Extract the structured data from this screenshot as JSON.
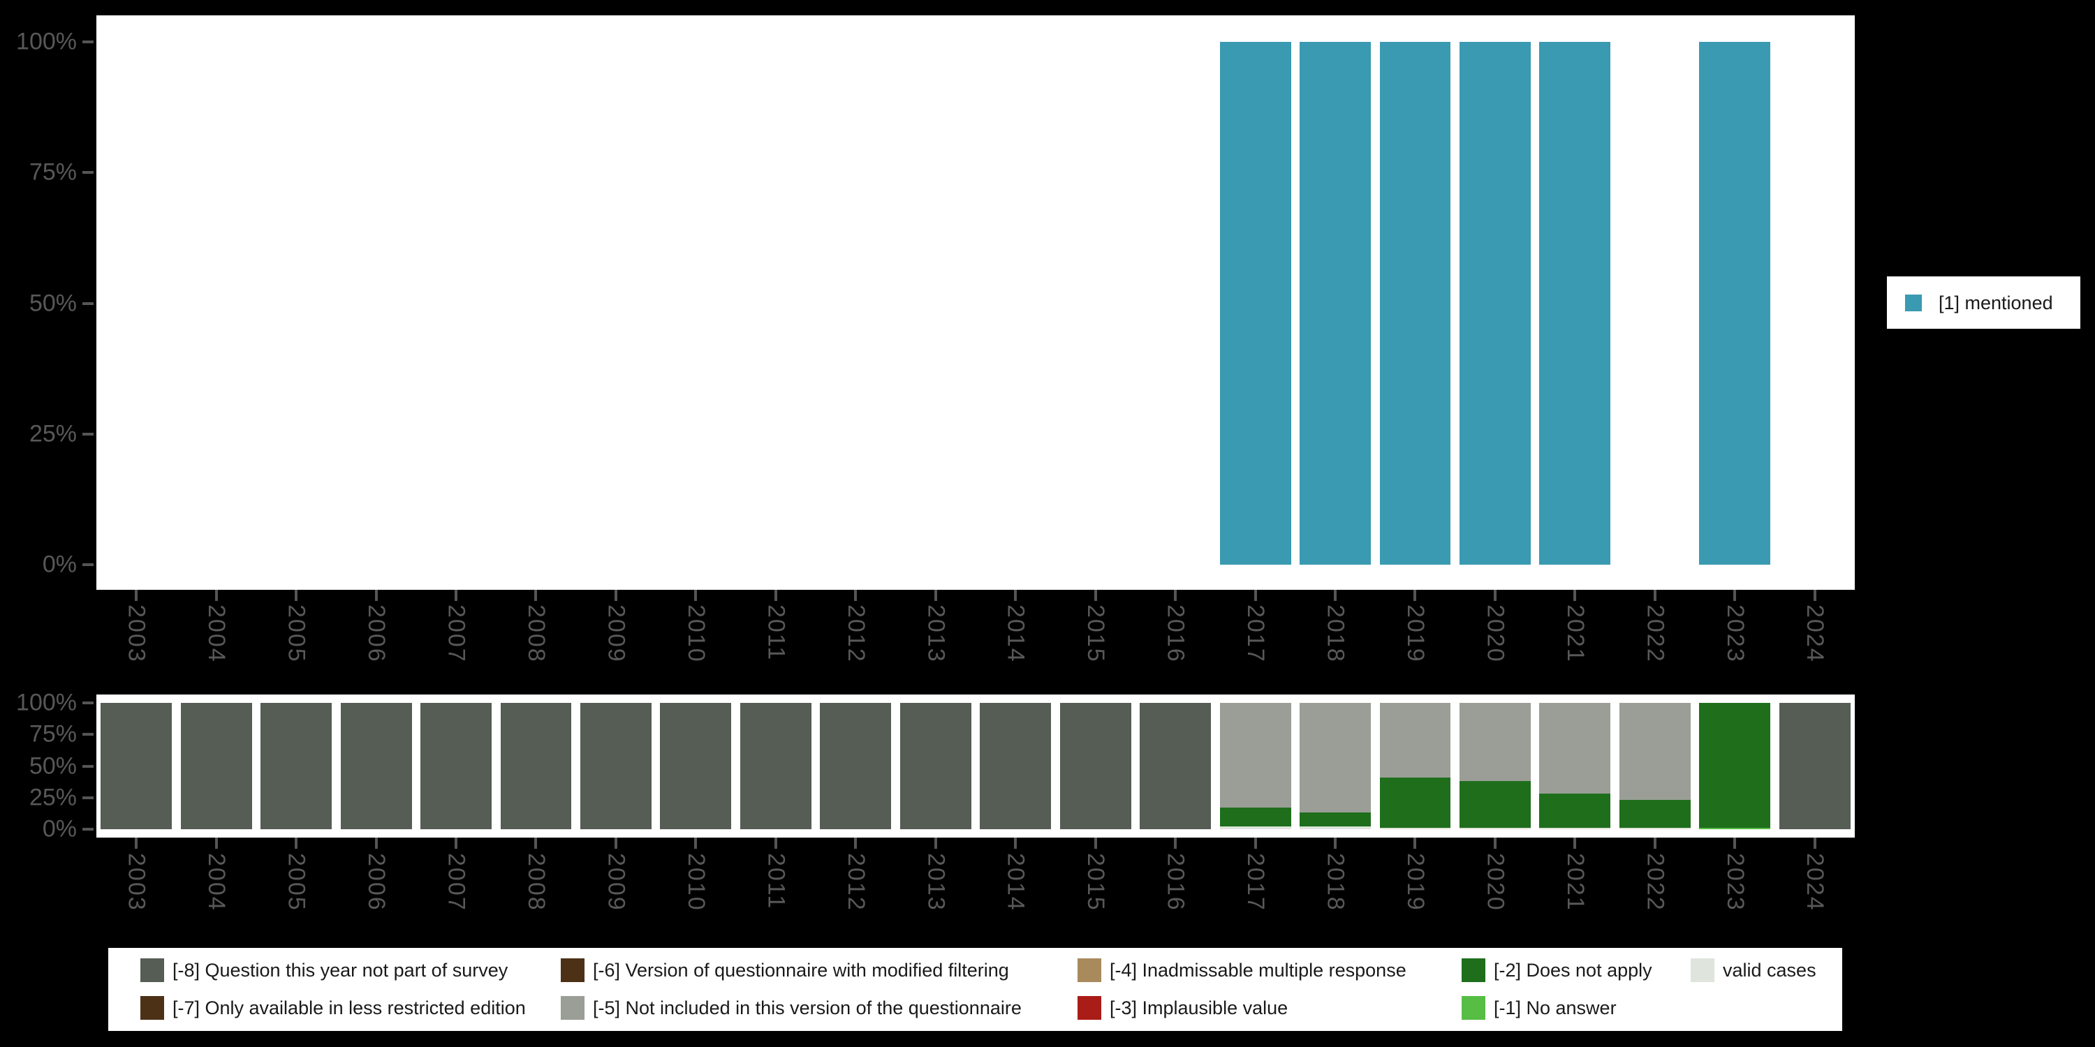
{
  "background": "#000000",
  "colors": {
    "panel": "#ffffff",
    "axis_text": "#585858",
    "tick": "#555555",
    "legend_text": "#1a1a1a",
    "mentioned": "#3a9ab1",
    "m8": "#555d55",
    "m7": "#4c3117",
    "m6": "#4c3117",
    "m5": "#9a9e96",
    "m4": "#a98a5c",
    "m3": "#aa1c17",
    "m2": "#1f6e1c",
    "m1": "#56bd45",
    "valid": "#dfe5dc"
  },
  "years": [
    "2003",
    "2004",
    "2005",
    "2006",
    "2007",
    "2008",
    "2009",
    "2010",
    "2011",
    "2012",
    "2013",
    "2014",
    "2015",
    "2016",
    "2017",
    "2018",
    "2019",
    "2020",
    "2021",
    "2022",
    "2023",
    "2024"
  ],
  "y_ticks": [
    "100%",
    "75%",
    "50%",
    "25%",
    "0%"
  ],
  "top_legend": {
    "label": "[1] mentioned",
    "color": "mentioned"
  },
  "bottom_legend": [
    {
      "label": "[-8] Question this year not part of survey",
      "color": "m8"
    },
    {
      "label": "[-7] Only available in less restricted edition",
      "color": "m7"
    },
    {
      "label": "[-6] Version of questionnaire with modified filtering",
      "color": "m6"
    },
    {
      "label": "[-5] Not included in this version of the questionnaire",
      "color": "m5"
    },
    {
      "label": "[-4] Inadmissable multiple response",
      "color": "m4"
    },
    {
      "label": "[-3] Implausible value",
      "color": "m3"
    },
    {
      "label": "[-2] Does not apply",
      "color": "m2"
    },
    {
      "label": "[-1] No answer",
      "color": "m1"
    },
    {
      "label": "valid cases",
      "color": "valid"
    }
  ],
  "chart_data": [
    {
      "type": "bar",
      "title": "",
      "xlabel": "",
      "ylabel": "",
      "ylim": [
        0,
        100
      ],
      "grid": false,
      "legend_position": "right",
      "y_tick_labels": [
        "0%",
        "25%",
        "50%",
        "75%",
        "100%"
      ],
      "categories": [
        "2003",
        "2004",
        "2005",
        "2006",
        "2007",
        "2008",
        "2009",
        "2010",
        "2011",
        "2012",
        "2013",
        "2014",
        "2015",
        "2016",
        "2017",
        "2018",
        "2019",
        "2020",
        "2021",
        "2022",
        "2023",
        "2024"
      ],
      "series": [
        {
          "name": "[1] mentioned",
          "color_key": "mentioned",
          "values": [
            0,
            0,
            0,
            0,
            0,
            0,
            0,
            0,
            0,
            0,
            0,
            0,
            0,
            0,
            100,
            100,
            100,
            100,
            100,
            0,
            100,
            0
          ]
        }
      ]
    },
    {
      "type": "bar",
      "stacked": true,
      "title": "",
      "xlabel": "",
      "ylabel": "",
      "ylim": [
        0,
        100
      ],
      "grid": false,
      "legend_position": "bottom",
      "y_tick_labels": [
        "0%",
        "25%",
        "50%",
        "75%",
        "100%"
      ],
      "categories": [
        "2003",
        "2004",
        "2005",
        "2006",
        "2007",
        "2008",
        "2009",
        "2010",
        "2011",
        "2012",
        "2013",
        "2014",
        "2015",
        "2016",
        "2017",
        "2018",
        "2019",
        "2020",
        "2021",
        "2022",
        "2023",
        "2024"
      ],
      "stack_order_bottom_to_top": [
        "valid cases",
        "[-1] No answer",
        "[-2] Does not apply",
        "[-5] Not included in this version of the questionnaire",
        "[-8] Question this year not part of survey"
      ],
      "series": [
        {
          "name": "valid cases",
          "color_key": "valid",
          "values": [
            0,
            0,
            0,
            0,
            0,
            0,
            0,
            0,
            0,
            0,
            0,
            0,
            0,
            0,
            2,
            2,
            1,
            1,
            1,
            1,
            0,
            0
          ]
        },
        {
          "name": "[-1] No answer",
          "color_key": "m1",
          "values": [
            0,
            0,
            0,
            0,
            0,
            0,
            0,
            0,
            0,
            0,
            0,
            0,
            0,
            0,
            0,
            0,
            0,
            0,
            0,
            0,
            1,
            0
          ]
        },
        {
          "name": "[-2] Does not apply",
          "color_key": "m2",
          "values": [
            0,
            0,
            0,
            0,
            0,
            0,
            0,
            0,
            0,
            0,
            0,
            0,
            0,
            0,
            15,
            11,
            40,
            37,
            27,
            22,
            99,
            0
          ]
        },
        {
          "name": "[-5] Not included in this version of the questionnaire",
          "color_key": "m5",
          "values": [
            0,
            0,
            0,
            0,
            0,
            0,
            0,
            0,
            0,
            0,
            0,
            0,
            0,
            0,
            83,
            87,
            59,
            62,
            72,
            77,
            0,
            0
          ]
        },
        {
          "name": "[-8] Question this year not part of survey",
          "color_key": "m8",
          "values": [
            100,
            100,
            100,
            100,
            100,
            100,
            100,
            100,
            100,
            100,
            100,
            100,
            100,
            100,
            0,
            0,
            0,
            0,
            0,
            0,
            0,
            100
          ]
        }
      ]
    }
  ]
}
